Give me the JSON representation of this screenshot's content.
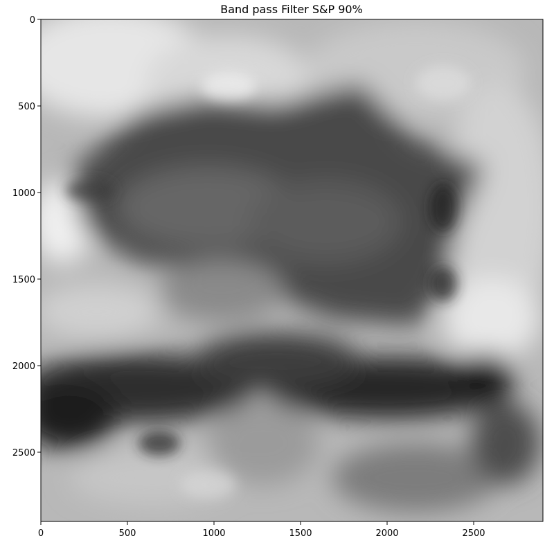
{
  "chart_data": {
    "type": "heatmap",
    "colormap": "gray",
    "title": "Band pass Filter S&P 90%",
    "xlabel": "",
    "ylabel": "",
    "xlim": [
      0,
      2900
    ],
    "ylim": [
      2900,
      0
    ],
    "x_ticks": [
      0,
      500,
      1000,
      1500,
      2000,
      2500
    ],
    "y_ticks": [
      0,
      500,
      1000,
      1500,
      2000,
      2500
    ],
    "x_tick_labels": [
      "0",
      "500",
      "1000",
      "1500",
      "2000",
      "2500"
    ],
    "y_tick_labels": [
      "0",
      "500",
      "1000",
      "1500",
      "2000",
      "2500"
    ],
    "grid": false,
    "image_description": "blurred grayscale band-pass filtered image of a fan-shaped dark region on a lighter background"
  }
}
